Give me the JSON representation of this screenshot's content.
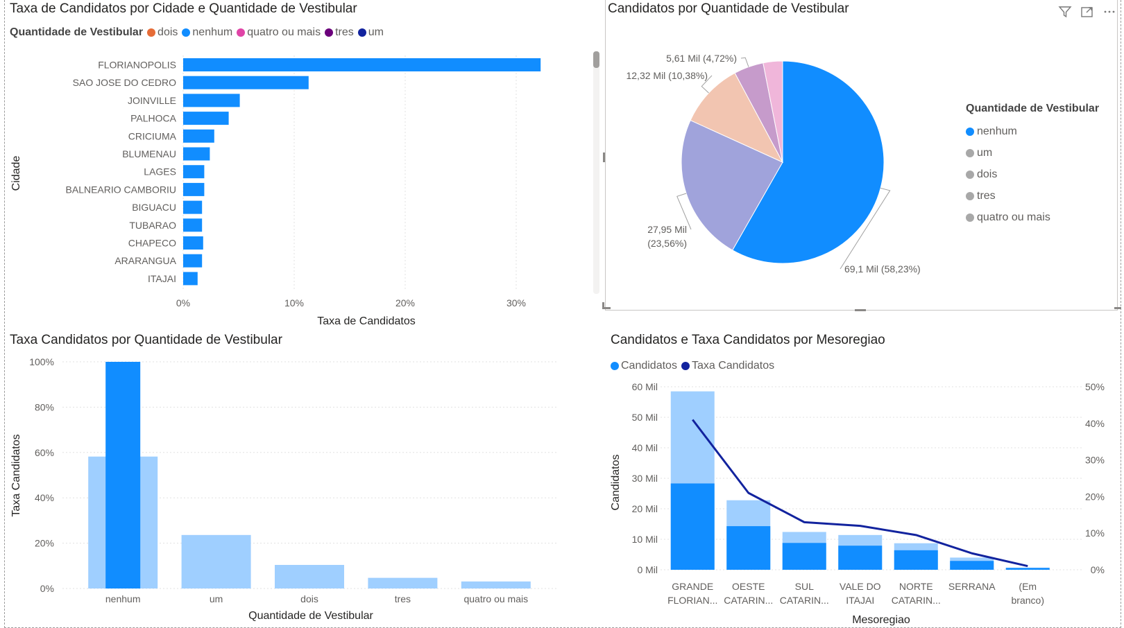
{
  "colors": {
    "nenhum": "#118DFF",
    "um": "#12239E",
    "dois": "#E66C37",
    "tres": "#6B007B",
    "quatro": "#E044A7",
    "light_bar": "#9FCFFF",
    "pie_nenhum": "#118DFF",
    "pie_tres": "#A0A3DB",
    "pie_um": "#F2C5B1",
    "pie_dois": "#C69BCB",
    "pie_quatro": "#F0B6DA",
    "line": "#12239E"
  },
  "icons": [
    "filter-icon",
    "focus-mode-icon",
    "more-options-icon"
  ],
  "chart_data": [
    {
      "type": "bar",
      "orientation": "horizontal",
      "title": "Taxa de Candidatos por Cidade e Quantidade de Vestibular",
      "legend_title": "Quantidade de Vestibular",
      "legend": [
        "dois",
        "nenhum",
        "quatro ou mais",
        "tres",
        "um"
      ],
      "xlabel": "Taxa de Candidatos",
      "ylabel": "Cidade",
      "categories": [
        "FLORIANOPOLIS",
        "SAO JOSE DO CEDRO",
        "JOINVILLE",
        "PALHOCA",
        "CRICIUMA",
        "BLUMENAU",
        "LAGES",
        "BALNEARIO CAMBORIU",
        "BIGUACU",
        "TUBARAO",
        "CHAPECO",
        "ARARANGUA",
        "ITAJAI"
      ],
      "values": [
        32.2,
        11.3,
        5.1,
        4.1,
        2.8,
        2.4,
        1.9,
        1.9,
        1.7,
        1.7,
        1.8,
        1.7,
        1.3
      ],
      "xticks": [
        "0%",
        "10%",
        "20%",
        "30%"
      ],
      "xlim": [
        0,
        33
      ]
    },
    {
      "type": "pie",
      "title": "Candidatos por Quantidade de Vestibular",
      "legend_title": "Quantidade de Vestibular",
      "legend": [
        "nenhum",
        "um",
        "dois",
        "tres",
        "quatro ou mais"
      ],
      "slices": [
        {
          "name": "nenhum",
          "value": 69.1,
          "label": "69,1 Mil (58,23%)"
        },
        {
          "name": "tres",
          "value": 27.95,
          "label": "27,95 Mil (23,56%)"
        },
        {
          "name": "um",
          "value": 12.32,
          "label": "12,32 Mil (10,38%)"
        },
        {
          "name": "dois",
          "value": 5.61,
          "label": "5,61 Mil (4,72%)"
        },
        {
          "name": "quatro ou mais",
          "value": 3.67,
          "label": ""
        }
      ]
    },
    {
      "type": "bar",
      "title": "Taxa Candidatos por Quantidade de Vestibular",
      "xlabel": "Quantidade de Vestibular",
      "ylabel": "Taxa Candidatos",
      "categories": [
        "nenhum",
        "um",
        "dois",
        "tres",
        "quatro ou mais"
      ],
      "series": [
        {
          "values": [
            58.2,
            23.6,
            10.4,
            4.7,
            3.1
          ]
        },
        {
          "values": [
            100,
            0,
            0,
            0,
            0
          ]
        }
      ],
      "yticks": [
        "0%",
        "20%",
        "40%",
        "60%",
        "80%",
        "100%"
      ],
      "ylim": [
        0,
        100
      ]
    },
    {
      "type": "bar",
      "title": "Candidatos e Taxa Candidatos por Mesoregiao",
      "legend": [
        "Candidatos",
        "Taxa Candidatos"
      ],
      "xlabel": "Mesoregiao",
      "ylabel": "Candidatos",
      "categories": [
        [
          "GRANDE",
          "FLORIAN..."
        ],
        [
          "OESTE",
          "CATARIN..."
        ],
        [
          "SUL",
          "CATARIN..."
        ],
        [
          "VALE DO",
          "ITAJAI"
        ],
        [
          "NORTE",
          "CATARIN..."
        ],
        [
          "SERRANA"
        ],
        [
          "(Em",
          "branco)"
        ]
      ],
      "series": [
        {
          "values": [
            58.5,
            22.8,
            12.4,
            11.4,
            8.7,
            4.0,
            0.7
          ]
        },
        {
          "values": [
            28.3,
            14.3,
            8.8,
            7.9,
            6.4,
            2.9,
            0.6
          ]
        },
        {
          "name": "Taxa Candidatos",
          "type": "line",
          "values": [
            41,
            21,
            13,
            12,
            9.5,
            4.5,
            1
          ]
        }
      ],
      "yticks": [
        "0 Mil",
        "10 Mil",
        "20 Mil",
        "30 Mil",
        "40 Mil",
        "50 Mil",
        "60 Mil"
      ],
      "y2ticks": [
        "0%",
        "10%",
        "20%",
        "30%",
        "40%",
        "50%"
      ],
      "ylim": [
        0,
        60
      ],
      "y2lim": [
        0,
        50
      ]
    }
  ]
}
